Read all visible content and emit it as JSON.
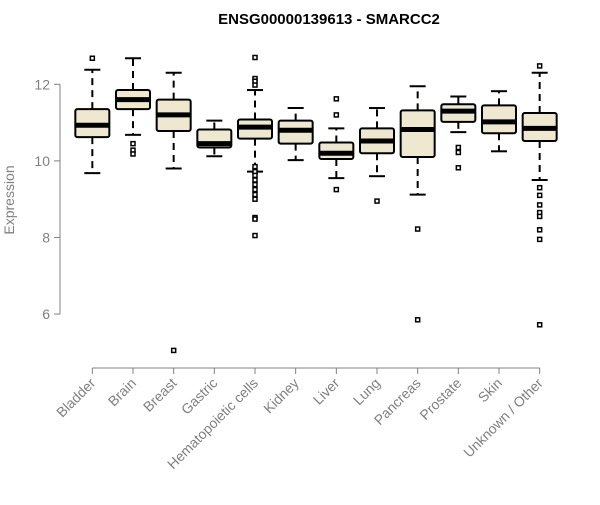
{
  "chart_data": {
    "type": "box",
    "title": "ENSG00000139613 - SMARCC2",
    "xlabel": "",
    "ylabel": "Expression",
    "ylim": [
      4.8,
      13.0
    ],
    "yticks": [
      6,
      8,
      10,
      12
    ],
    "categories": [
      "Bladder",
      "Brain",
      "Breast",
      "Gastric",
      "Hematopoietic cells",
      "Kidney",
      "Liver",
      "Lung",
      "Pancreas",
      "Prostate",
      "Skin",
      "Unknown / Other"
    ],
    "boxes": [
      {
        "category": "Bladder",
        "whisker_low": 9.68,
        "q1": 10.62,
        "median": 10.93,
        "q3": 11.35,
        "whisker_high": 12.38,
        "outliers": [
          12.68
        ]
      },
      {
        "category": "Brain",
        "whisker_low": 10.68,
        "q1": 11.35,
        "median": 11.6,
        "q3": 11.85,
        "whisker_high": 12.68,
        "outliers": [
          10.45,
          10.28,
          10.18
        ]
      },
      {
        "category": "Breast",
        "whisker_low": 9.8,
        "q1": 10.78,
        "median": 11.2,
        "q3": 11.6,
        "whisker_high": 12.3,
        "outliers": [
          5.05
        ]
      },
      {
        "category": "Gastric",
        "whisker_low": 10.12,
        "q1": 10.35,
        "median": 10.45,
        "q3": 10.82,
        "whisker_high": 11.05,
        "outliers": []
      },
      {
        "category": "Hematopoietic cells",
        "whisker_low": 9.72,
        "q1": 10.58,
        "median": 10.88,
        "q3": 11.08,
        "whisker_high": 11.85,
        "outliers": [
          12.7,
          12.15,
          12.08,
          11.98,
          9.85,
          9.72,
          9.62,
          9.5,
          9.38,
          9.25,
          9.12,
          9.0,
          8.52,
          8.48,
          8.05
        ]
      },
      {
        "category": "Kidney",
        "whisker_low": 10.02,
        "q1": 10.45,
        "median": 10.8,
        "q3": 11.05,
        "whisker_high": 11.38,
        "outliers": []
      },
      {
        "category": "Liver",
        "whisker_low": 9.55,
        "q1": 10.05,
        "median": 10.2,
        "q3": 10.48,
        "whisker_high": 10.85,
        "outliers": [
          11.62,
          11.2,
          9.25
        ]
      },
      {
        "category": "Lung",
        "whisker_low": 9.6,
        "q1": 10.2,
        "median": 10.52,
        "q3": 10.85,
        "whisker_high": 11.38,
        "outliers": [
          8.95
        ]
      },
      {
        "category": "Pancreas",
        "whisker_low": 9.12,
        "q1": 10.1,
        "median": 10.82,
        "q3": 11.32,
        "whisker_high": 11.95,
        "outliers": [
          8.22,
          5.85
        ]
      },
      {
        "category": "Prostate",
        "whisker_low": 10.75,
        "q1": 11.02,
        "median": 11.3,
        "q3": 11.48,
        "whisker_high": 11.68,
        "outliers": [
          10.35,
          10.22,
          9.82
        ]
      },
      {
        "category": "Skin",
        "whisker_low": 10.25,
        "q1": 10.72,
        "median": 11.02,
        "q3": 11.45,
        "whisker_high": 11.82,
        "outliers": []
      },
      {
        "category": "Unknown / Other",
        "whisker_low": 9.5,
        "q1": 10.52,
        "median": 10.85,
        "q3": 11.25,
        "whisker_high": 12.3,
        "outliers": [
          12.48,
          9.3,
          9.1,
          8.85,
          8.65,
          8.55,
          8.2,
          7.95,
          5.72
        ]
      }
    ],
    "colors": {
      "box_fill": "#efe8d0",
      "box_stroke": "#000000",
      "median": "#000000",
      "axis": "#808080",
      "text": "#808080",
      "title": "#000000"
    },
    "grid": false,
    "legend": "none"
  }
}
